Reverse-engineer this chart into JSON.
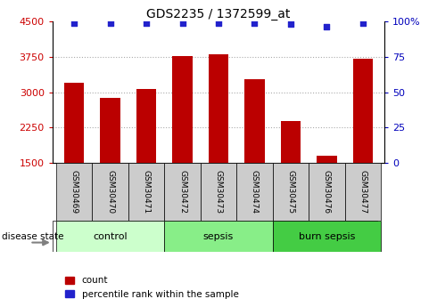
{
  "title": "GDS2235 / 1372599_at",
  "samples": [
    "GSM30469",
    "GSM30470",
    "GSM30471",
    "GSM30472",
    "GSM30473",
    "GSM30474",
    "GSM30475",
    "GSM30476",
    "GSM30477"
  ],
  "counts": [
    3200,
    2880,
    3060,
    3760,
    3810,
    3280,
    2380,
    1650,
    3700
  ],
  "percentiles": [
    99,
    99,
    99,
    99,
    99,
    99,
    98,
    96,
    99
  ],
  "groups": [
    {
      "label": "control",
      "indices": [
        0,
        1,
        2
      ],
      "color": "#ccffcc"
    },
    {
      "label": "sepsis",
      "indices": [
        3,
        4,
        5
      ],
      "color": "#88ee88"
    },
    {
      "label": "burn sepsis",
      "indices": [
        6,
        7,
        8
      ],
      "color": "#44cc44"
    }
  ],
  "ymin": 1500,
  "ymax": 4500,
  "yticks": [
    1500,
    2250,
    3000,
    3750,
    4500
  ],
  "y2ticks": [
    0,
    25,
    50,
    75,
    100
  ],
  "bar_color": "#bb0000",
  "dot_color": "#2222cc",
  "grid_color": "#aaaaaa",
  "bg_color": "#ffffff",
  "label_count": "count",
  "label_percentile": "percentile rank within the sample",
  "disease_state_label": "disease state",
  "tick_label_color_left": "#cc0000",
  "tick_label_color_right": "#0000bb",
  "sample_box_color": "#cccccc",
  "bar_width": 0.55
}
